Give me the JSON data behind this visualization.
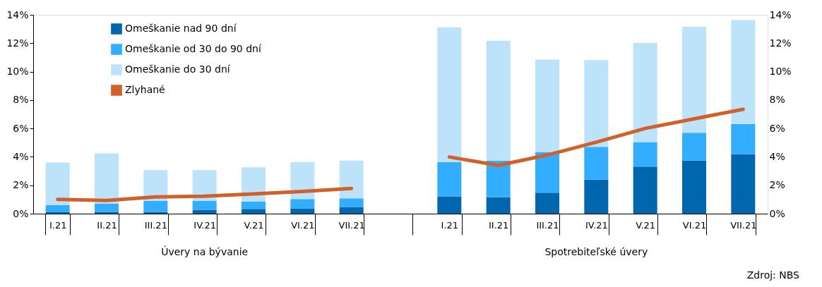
{
  "chart_data": {
    "type": "bar",
    "stacked": true,
    "categories": [
      "I.21",
      "II.21",
      "III.21",
      "IV.21",
      "V.21",
      "VI.21",
      "VII.21",
      null,
      "I.21",
      "II.21",
      "III.21",
      "IV.21",
      "V.21",
      "VI.21",
      "VII.21"
    ],
    "series": [
      {
        "name": "Omeškanie nad 90 dní",
        "color": "#0066ad",
        "values": [
          0.1,
          0.13,
          0.13,
          0.27,
          0.34,
          0.37,
          0.47,
          null,
          1.22,
          1.16,
          1.48,
          2.4,
          3.32,
          3.74,
          4.2
        ]
      },
      {
        "name": "Omeškanie od 30 do 90 dní",
        "color": "#33adff",
        "values": [
          0.5,
          0.58,
          0.77,
          0.63,
          0.51,
          0.66,
          0.61,
          null,
          2.41,
          2.56,
          2.86,
          2.31,
          1.72,
          1.96,
          2.1
        ]
      },
      {
        "name": "Omeškanie do 30 dní",
        "color": "#bde3fb",
        "values": [
          3.0,
          3.54,
          2.16,
          2.16,
          2.42,
          2.59,
          2.66,
          null,
          9.49,
          8.45,
          6.51,
          6.1,
          6.97,
          7.46,
          7.33
        ]
      },
      {
        "name": "Zlyhané",
        "type": "line",
        "color": "#d2602a",
        "values": [
          1.0,
          0.93,
          1.18,
          1.23,
          1.39,
          1.56,
          1.78,
          null,
          3.99,
          3.4,
          4.13,
          5.03,
          6.0,
          6.68,
          7.35
        ]
      }
    ],
    "ylim": [
      0,
      14
    ],
    "yticks": [
      {
        "value": 0,
        "label": "0%"
      },
      {
        "value": 2,
        "label": "2%"
      },
      {
        "value": 4,
        "label": "4%"
      },
      {
        "value": 6,
        "label": "6%"
      },
      {
        "value": 8,
        "label": "8%"
      },
      {
        "value": 10,
        "label": "10%"
      },
      {
        "value": 12,
        "label": "12%"
      },
      {
        "value": 14,
        "label": "14%"
      }
    ],
    "y2lim": [
      0,
      14
    ],
    "y2ticks": [
      {
        "value": 0,
        "label": "0%"
      },
      {
        "value": 2,
        "label": "2%"
      },
      {
        "value": 4,
        "label": "4%"
      },
      {
        "value": 6,
        "label": "6%"
      },
      {
        "value": 8,
        "label": "8%"
      },
      {
        "value": 10,
        "label": "10%"
      },
      {
        "value": 12,
        "label": "12%"
      },
      {
        "value": 14,
        "label": "14%"
      }
    ],
    "annotations": [
      "Úvery na bývanie",
      "Spotrebiteľské úvery",
      "Zdroj: NBS"
    ],
    "legend": "top left",
    "grid": false
  }
}
